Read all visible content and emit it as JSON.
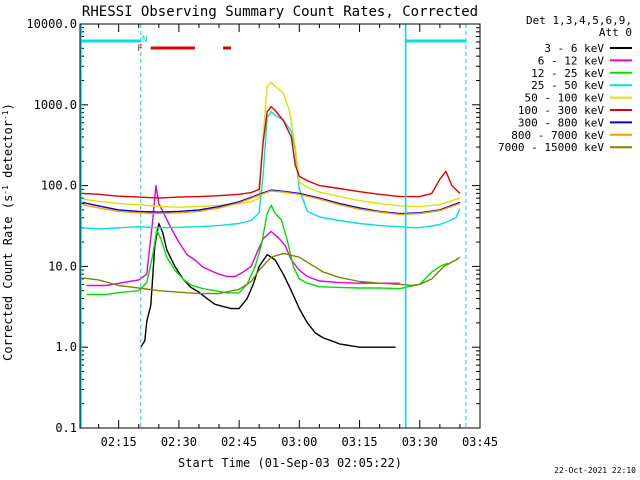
{
  "chart_data": {
    "type": "line",
    "title": "RHESSI Observing Summary Count Rates, Corrected",
    "xlabel": "Start Time (01-Sep-03 02:05:22)",
    "ylabel": "Corrected Count Rate (s⁻¹ detector⁻¹)",
    "ylabel_main": "Corrected Count Rate (s",
    "ylabel_sup1": "-1",
    "ylabel_mid": " detector",
    "ylabel_sup2": "-1",
    "ylabel_end": ")",
    "yscale": "log",
    "ylim": [
      0.1,
      10000
    ],
    "xlim": [
      "02:05:22",
      "03:45:00"
    ],
    "y_ticks": [
      {
        "value": 0.1,
        "label": "0.1"
      },
      {
        "value": 1,
        "label": "1.0"
      },
      {
        "value": 10,
        "label": "10.0"
      },
      {
        "value": 100,
        "label": "100.0"
      },
      {
        "value": 1000,
        "label": "1000.0"
      },
      {
        "value": 10000,
        "label": "10000.0"
      }
    ],
    "x_ticks": [
      "02:15",
      "02:30",
      "02:45",
      "03:00",
      "03:15",
      "03:30",
      "03:45"
    ],
    "x_ticks_minutes": [
      15,
      30,
      45,
      60,
      75,
      90,
      105
    ],
    "x_start_minutes": 5.37,
    "x_end_minutes": 105,
    "legend_placement": "right",
    "legend_header": [
      "Det 1,3,4,5,6,9,",
      "Att 0"
    ],
    "series": [
      {
        "name": "3 - 6 keV",
        "color": "#000000",
        "points": [
          [
            20.5,
            1
          ],
          [
            21.5,
            1.2
          ],
          [
            22,
            2.1
          ],
          [
            23,
            3.3
          ],
          [
            24,
            18
          ],
          [
            25,
            34
          ],
          [
            26,
            26
          ],
          [
            27,
            16
          ],
          [
            29,
            10
          ],
          [
            31,
            7
          ],
          [
            33,
            5.5
          ],
          [
            35,
            4.8
          ],
          [
            37,
            4
          ],
          [
            39,
            3.4
          ],
          [
            41,
            3.2
          ],
          [
            43,
            3
          ],
          [
            45,
            3
          ],
          [
            47,
            4
          ],
          [
            48.5,
            6
          ],
          [
            50,
            10
          ],
          [
            52,
            14
          ],
          [
            54,
            12
          ],
          [
            56,
            8
          ],
          [
            58,
            5
          ],
          [
            60,
            3
          ],
          [
            62,
            2
          ],
          [
            64,
            1.5
          ],
          [
            66,
            1.3
          ],
          [
            68,
            1.2
          ],
          [
            70,
            1.1
          ],
          [
            75,
            1
          ],
          [
            80,
            1
          ],
          [
            84,
            1
          ]
        ]
      },
      {
        "name": "6 - 12 keV",
        "color": "#e000e0",
        "points": [
          [
            7,
            5.8
          ],
          [
            12,
            5.8
          ],
          [
            16,
            6.3
          ],
          [
            20,
            6.8
          ],
          [
            22,
            8
          ],
          [
            23.5,
            38
          ],
          [
            24.3,
            100
          ],
          [
            25,
            60
          ],
          [
            26,
            48
          ],
          [
            28,
            30
          ],
          [
            30,
            20
          ],
          [
            32,
            14
          ],
          [
            34,
            12
          ],
          [
            36,
            9.8
          ],
          [
            38,
            8.8
          ],
          [
            40,
            8
          ],
          [
            42,
            7.5
          ],
          [
            44,
            7.5
          ],
          [
            46,
            8.5
          ],
          [
            48,
            10
          ],
          [
            49.5,
            15
          ],
          [
            51,
            22
          ],
          [
            53,
            27
          ],
          [
            55,
            22
          ],
          [
            56.5,
            18
          ],
          [
            58,
            12
          ],
          [
            60,
            9
          ],
          [
            62,
            7.5
          ],
          [
            65,
            6.6
          ],
          [
            70,
            6.3
          ],
          [
            75,
            6.2
          ],
          [
            80,
            6.2
          ],
          [
            85,
            6.2
          ]
        ]
      },
      {
        "name": "12 - 25 keV",
        "color": "#00e000",
        "points": [
          [
            7,
            4.5
          ],
          [
            12,
            4.5
          ],
          [
            16,
            4.8
          ],
          [
            20,
            5
          ],
          [
            22,
            6.3
          ],
          [
            23.5,
            14
          ],
          [
            24.5,
            28
          ],
          [
            25.5,
            22
          ],
          [
            27,
            13
          ],
          [
            29,
            9
          ],
          [
            31,
            7
          ],
          [
            33,
            5.9
          ],
          [
            36,
            5.3
          ],
          [
            39,
            5
          ],
          [
            42,
            4.7
          ],
          [
            45,
            4.7
          ],
          [
            47,
            6
          ],
          [
            49,
            10
          ],
          [
            50.5,
            18
          ],
          [
            52,
            45
          ],
          [
            53,
            57
          ],
          [
            54,
            45
          ],
          [
            55.5,
            38
          ],
          [
            57,
            21
          ],
          [
            58.5,
            10
          ],
          [
            60,
            7
          ],
          [
            62,
            6.2
          ],
          [
            65,
            5.6
          ],
          [
            70,
            5.5
          ],
          [
            75,
            5.4
          ],
          [
            80,
            5.4
          ],
          [
            85,
            5.3
          ],
          [
            90,
            6
          ],
          [
            93,
            8.5
          ],
          [
            95,
            10
          ],
          [
            97,
            11
          ]
        ]
      },
      {
        "name": "25 - 50 keV",
        "color": "#00e0e0",
        "points": [
          [
            6,
            30
          ],
          [
            10,
            29
          ],
          [
            15,
            30
          ],
          [
            20,
            31
          ],
          [
            25,
            30
          ],
          [
            30,
            30.5
          ],
          [
            35,
            31
          ],
          [
            40,
            32
          ],
          [
            45,
            34
          ],
          [
            48,
            37
          ],
          [
            50,
            46
          ],
          [
            51,
            140
          ],
          [
            52,
            700
          ],
          [
            53,
            820
          ],
          [
            54,
            740
          ],
          [
            56,
            650
          ],
          [
            58,
            470
          ],
          [
            59,
            270
          ],
          [
            60,
            90
          ],
          [
            62,
            48
          ],
          [
            65,
            41
          ],
          [
            70,
            37
          ],
          [
            75,
            34
          ],
          [
            80,
            32
          ],
          [
            85,
            31
          ],
          [
            89,
            30
          ],
          [
            92,
            31
          ],
          [
            95,
            33
          ],
          [
            97,
            36
          ],
          [
            99,
            40
          ],
          [
            100,
            52
          ]
        ]
      },
      {
        "name": "50 - 100 keV",
        "color": "#e0e000",
        "points": [
          [
            6,
            68
          ],
          [
            10,
            64
          ],
          [
            15,
            60
          ],
          [
            20,
            58
          ],
          [
            25,
            55
          ],
          [
            30,
            54
          ],
          [
            35,
            55
          ],
          [
            40,
            57
          ],
          [
            45,
            60
          ],
          [
            48,
            63
          ],
          [
            50,
            70
          ],
          [
            51,
            400
          ],
          [
            52,
            1700
          ],
          [
            53,
            1900
          ],
          [
            54,
            1700
          ],
          [
            56,
            1400
          ],
          [
            57.5,
            850
          ],
          [
            59,
            300
          ],
          [
            60,
            110
          ],
          [
            62,
            95
          ],
          [
            65,
            83
          ],
          [
            70,
            73
          ],
          [
            75,
            65
          ],
          [
            80,
            60
          ],
          [
            85,
            56
          ],
          [
            90,
            55
          ],
          [
            95,
            58
          ],
          [
            98,
            65
          ],
          [
            100,
            70
          ]
        ]
      },
      {
        "name": "100 - 300 keV",
        "color": "#e00000",
        "points": [
          [
            6,
            80
          ],
          [
            10,
            78
          ],
          [
            15,
            74
          ],
          [
            20,
            72
          ],
          [
            25,
            70
          ],
          [
            30,
            72
          ],
          [
            35,
            73
          ],
          [
            40,
            75
          ],
          [
            45,
            78
          ],
          [
            48,
            82
          ],
          [
            50,
            90
          ],
          [
            51,
            350
          ],
          [
            52,
            820
          ],
          [
            53,
            950
          ],
          [
            54,
            850
          ],
          [
            56,
            640
          ],
          [
            58,
            400
          ],
          [
            59,
            180
          ],
          [
            60,
            130
          ],
          [
            62,
            115
          ],
          [
            65,
            100
          ],
          [
            70,
            92
          ],
          [
            75,
            84
          ],
          [
            80,
            78
          ],
          [
            85,
            73
          ],
          [
            90,
            73
          ],
          [
            93,
            80
          ],
          [
            95,
            120
          ],
          [
            96.5,
            150
          ],
          [
            98,
            100
          ],
          [
            100,
            80
          ]
        ]
      },
      {
        "name": "300 - 800 keV",
        "color": "#0000d0",
        "points": [
          [
            6,
            62
          ],
          [
            10,
            56
          ],
          [
            15,
            50
          ],
          [
            20,
            48
          ],
          [
            25,
            47
          ],
          [
            30,
            48
          ],
          [
            35,
            50
          ],
          [
            40,
            55
          ],
          [
            45,
            63
          ],
          [
            50,
            78
          ],
          [
            53,
            88
          ],
          [
            56,
            85
          ],
          [
            60,
            80
          ],
          [
            65,
            70
          ],
          [
            70,
            60
          ],
          [
            75,
            53
          ],
          [
            80,
            48
          ],
          [
            85,
            45
          ],
          [
            90,
            46
          ],
          [
            95,
            50
          ],
          [
            100,
            62
          ]
        ]
      },
      {
        "name": "800 - 7000 keV",
        "color": "#ff9900",
        "points": [
          [
            6,
            58
          ],
          [
            10,
            53
          ],
          [
            15,
            48
          ],
          [
            20,
            46
          ],
          [
            25,
            45
          ],
          [
            30,
            46
          ],
          [
            35,
            48
          ],
          [
            40,
            53
          ],
          [
            45,
            61
          ],
          [
            50,
            76
          ],
          [
            53,
            86
          ],
          [
            56,
            83
          ],
          [
            60,
            78
          ],
          [
            65,
            68
          ],
          [
            70,
            58
          ],
          [
            75,
            51
          ],
          [
            80,
            47
          ],
          [
            85,
            44
          ],
          [
            90,
            45
          ],
          [
            95,
            49
          ],
          [
            100,
            60
          ]
        ]
      },
      {
        "name": "7000 - 15000 keV",
        "color": "#808000",
        "points": [
          [
            6,
            7.2
          ],
          [
            10,
            6.8
          ],
          [
            15,
            5.8
          ],
          [
            20,
            5.4
          ],
          [
            25,
            5
          ],
          [
            30,
            4.8
          ],
          [
            35,
            4.6
          ],
          [
            40,
            4.6
          ],
          [
            45,
            5.2
          ],
          [
            48,
            6.5
          ],
          [
            50,
            9
          ],
          [
            53,
            13
          ],
          [
            56,
            14.5
          ],
          [
            60,
            13
          ],
          [
            63,
            10.5
          ],
          [
            66,
            8.5
          ],
          [
            70,
            7.3
          ],
          [
            75,
            6.5
          ],
          [
            80,
            6.2
          ],
          [
            85,
            6
          ],
          [
            88,
            5.8
          ],
          [
            90,
            6
          ],
          [
            93,
            7
          ],
          [
            96,
            10
          ],
          [
            99,
            12
          ],
          [
            100,
            13
          ]
        ]
      }
    ],
    "top_bars": [
      {
        "color": "#00e0e0",
        "from": 5.37,
        "to": 20.5
      },
      {
        "color": "#00e0e0",
        "from": 86.5,
        "to": 101.5
      },
      {
        "color": "#e00000",
        "from": 23,
        "to": 34
      },
      {
        "color": "#e00000",
        "from": 41,
        "to": 43
      }
    ],
    "top_markers": [
      {
        "label": "N",
        "color": "#00e0e0",
        "at": 21.5
      },
      {
        "label": "F",
        "color": "#e00000",
        "at": 20.3
      }
    ],
    "vlines_solid": [
      86.5
    ],
    "vlines_dashed": [
      20.5,
      101.5
    ],
    "annotations": [
      "22-Oct-2021 22:10"
    ]
  }
}
